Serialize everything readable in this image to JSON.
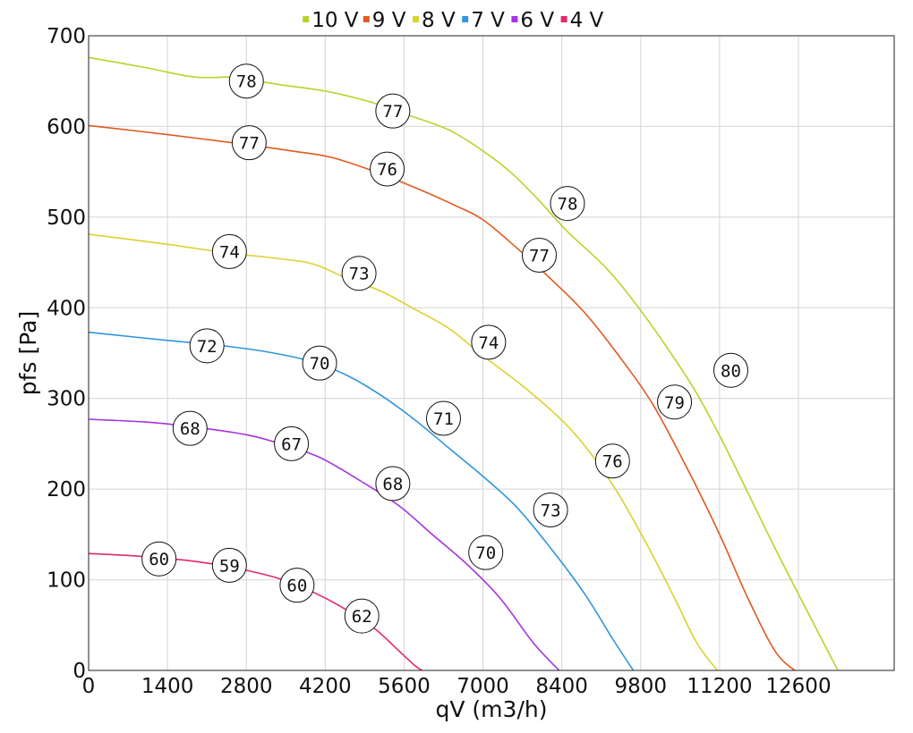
{
  "chart_data": {
    "type": "line",
    "xlabel": "qV (m3/h)",
    "ylabel": "pfs [Pa]",
    "xlim": [
      0,
      14300
    ],
    "ylim": [
      0,
      700
    ],
    "xticks": [
      0,
      1400,
      2800,
      4200,
      5600,
      7000,
      8400,
      9800,
      11200,
      12600
    ],
    "yticks": [
      0,
      100,
      200,
      300,
      400,
      500,
      600,
      700
    ],
    "grid": true,
    "legend_position": "top",
    "series": [
      {
        "name": "10 V",
        "color": "#b5d52a",
        "points": [
          [
            0,
            676
          ],
          [
            1000,
            665
          ],
          [
            1800,
            655
          ],
          [
            2200,
            654
          ],
          [
            2600,
            654
          ],
          [
            3400,
            646
          ],
          [
            4200,
            639
          ],
          [
            5000,
            627
          ],
          [
            5700,
            612
          ],
          [
            6400,
            596
          ],
          [
            7000,
            573
          ],
          [
            7500,
            549
          ],
          [
            8000,
            518
          ],
          [
            8500,
            484
          ],
          [
            9200,
            443
          ],
          [
            9800,
            397
          ],
          [
            10400,
            344
          ],
          [
            10800,
            305
          ],
          [
            11200,
            259
          ],
          [
            11600,
            209
          ],
          [
            12200,
            133
          ],
          [
            12800,
            60
          ],
          [
            13300,
            0
          ]
        ],
        "labels": [
          {
            "x": 2800,
            "y": 650,
            "text": "78"
          },
          {
            "x": 5400,
            "y": 617,
            "text": "77"
          },
          {
            "x": 8500,
            "y": 515,
            "text": "78"
          },
          {
            "x": 11400,
            "y": 331,
            "text": "80"
          }
        ]
      },
      {
        "name": "9 V",
        "color": "#e05a1e",
        "points": [
          [
            0,
            601
          ],
          [
            1400,
            591
          ],
          [
            2800,
            580
          ],
          [
            3600,
            573
          ],
          [
            4300,
            566
          ],
          [
            5000,
            552
          ],
          [
            5700,
            535
          ],
          [
            6500,
            513
          ],
          [
            7000,
            497
          ],
          [
            7600,
            466
          ],
          [
            8200,
            432
          ],
          [
            8800,
            395
          ],
          [
            9400,
            348
          ],
          [
            10000,
            295
          ],
          [
            10600,
            226
          ],
          [
            11200,
            150
          ],
          [
            11700,
            80
          ],
          [
            12200,
            20
          ],
          [
            12600,
            -3
          ]
        ],
        "labels": [
          {
            "x": 2850,
            "y": 582,
            "text": "77"
          },
          {
            "x": 5300,
            "y": 553,
            "text": "76"
          },
          {
            "x": 8000,
            "y": 458,
            "text": "77"
          },
          {
            "x": 10400,
            "y": 296,
            "text": "79"
          }
        ]
      },
      {
        "name": "8 V",
        "color": "#dcd12e",
        "points": [
          [
            0,
            481
          ],
          [
            1400,
            470
          ],
          [
            2400,
            461
          ],
          [
            3400,
            454
          ],
          [
            4000,
            448
          ],
          [
            4600,
            432
          ],
          [
            5200,
            418
          ],
          [
            5800,
            398
          ],
          [
            6400,
            377
          ],
          [
            7000,
            347
          ],
          [
            7800,
            309
          ],
          [
            8600,
            263
          ],
          [
            9300,
            205
          ],
          [
            9900,
            140
          ],
          [
            10400,
            80
          ],
          [
            10800,
            30
          ],
          [
            11200,
            -3
          ]
        ],
        "labels": [
          {
            "x": 2500,
            "y": 462,
            "text": "74"
          },
          {
            "x": 4800,
            "y": 438,
            "text": "73"
          },
          {
            "x": 7100,
            "y": 362,
            "text": "74"
          },
          {
            "x": 9300,
            "y": 231,
            "text": "76"
          }
        ]
      },
      {
        "name": "7 V",
        "color": "#2f96dd",
        "points": [
          [
            0,
            373
          ],
          [
            1400,
            364
          ],
          [
            2400,
            358
          ],
          [
            3200,
            351
          ],
          [
            4000,
            340
          ],
          [
            4600,
            325
          ],
          [
            5200,
            303
          ],
          [
            5800,
            276
          ],
          [
            6400,
            245
          ],
          [
            7000,
            214
          ],
          [
            7600,
            180
          ],
          [
            8200,
            135
          ],
          [
            8800,
            85
          ],
          [
            9300,
            35
          ],
          [
            9700,
            -3
          ]
        ],
        "labels": [
          {
            "x": 2100,
            "y": 358,
            "text": "72"
          },
          {
            "x": 4100,
            "y": 339,
            "text": "70"
          },
          {
            "x": 6300,
            "y": 278,
            "text": "71"
          },
          {
            "x": 8200,
            "y": 177,
            "text": "73"
          }
        ]
      },
      {
        "name": "6 V",
        "color": "#a533e0",
        "points": [
          [
            0,
            277
          ],
          [
            1000,
            274
          ],
          [
            1800,
            269
          ],
          [
            2800,
            260
          ],
          [
            3400,
            250
          ],
          [
            4100,
            235
          ],
          [
            4800,
            210
          ],
          [
            5500,
            182
          ],
          [
            6100,
            150
          ],
          [
            6700,
            118
          ],
          [
            7300,
            80
          ],
          [
            7900,
            30
          ],
          [
            8400,
            -3
          ]
        ],
        "labels": [
          {
            "x": 1800,
            "y": 267,
            "text": "68"
          },
          {
            "x": 3600,
            "y": 250,
            "text": "67"
          },
          {
            "x": 5400,
            "y": 206,
            "text": "68"
          },
          {
            "x": 7050,
            "y": 130,
            "text": "70"
          }
        ]
      },
      {
        "name": "4 V",
        "color": "#e3286a",
        "points": [
          [
            0,
            129
          ],
          [
            900,
            126
          ],
          [
            1800,
            121
          ],
          [
            2600,
            113
          ],
          [
            3400,
            101
          ],
          [
            4000,
            86
          ],
          [
            4600,
            66
          ],
          [
            5100,
            45
          ],
          [
            5500,
            22
          ],
          [
            5800,
            5
          ],
          [
            6000,
            -3
          ]
        ],
        "labels": [
          {
            "x": 1250,
            "y": 123,
            "text": "60"
          },
          {
            "x": 2500,
            "y": 116,
            "text": "59"
          },
          {
            "x": 3700,
            "y": 94,
            "text": "60"
          },
          {
            "x": 4850,
            "y": 60,
            "text": "62"
          }
        ]
      }
    ]
  }
}
